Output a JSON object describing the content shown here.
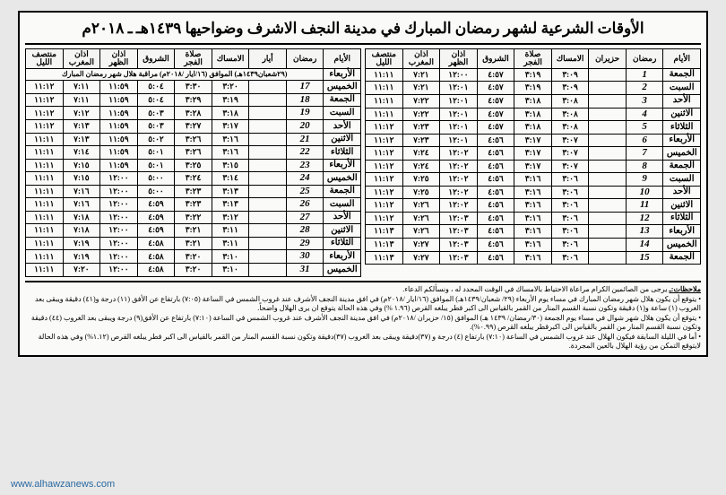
{
  "title": "الأوقات الشرعية لشهر رمضان المبارك في مدينة النجف الاشرف وضواحيها ١٤٣٩هـ ـ ٢٠١٨م",
  "columns": [
    "الأيام",
    "رمضان",
    "أيار",
    "الامساك",
    "صلاة الفجر",
    "الشروق",
    "اذان الظهر",
    "اذان المغرب",
    "منتصف الليل"
  ],
  "columns2": [
    "الأيام",
    "رمضان",
    "حزيران",
    "الامساك",
    "صلاة الفجر",
    "الشروق",
    "اذان الظهر",
    "اذان المغرب",
    "منتصف الليل"
  ],
  "span_row": "(٢٩شعبان١٤٣٩هـ) الموافق (١٦/ايار /٢٠١٨م) مراقبة هلال شهر رمضان المبارك",
  "right_rows": [
    [
      "الخميس",
      "17",
      "",
      "٣:٢٠",
      "٣:٣٠",
      "٥:٠٤",
      "١١:٥٩",
      "٧:١١",
      "١١:١٢"
    ],
    [
      "الجمعة",
      "18",
      "",
      "٣:١٩",
      "٣:٢٩",
      "٥:٠٤",
      "١١:٥٩",
      "٧:١١",
      "١١:١٢"
    ],
    [
      "السبت",
      "19",
      "",
      "٣:١٨",
      "٣:٢٨",
      "٥:٠٣",
      "١١:٥٩",
      "٧:١٢",
      "١١:١٢"
    ],
    [
      "الأحد",
      "20",
      "",
      "٣:١٧",
      "٣:٢٧",
      "٥:٠٣",
      "١١:٥٩",
      "٧:١٣",
      "١١:١٢"
    ],
    [
      "الاثنين",
      "21",
      "",
      "٣:١٦",
      "٣:٢٦",
      "٥:٠٢",
      "١١:٥٩",
      "٧:١٣",
      "١١:١١"
    ],
    [
      "الثلاثاء",
      "22",
      "",
      "٣:١٦",
      "٣:٢٦",
      "٥:٠١",
      "١١:٥٩",
      "٧:١٤",
      "١١:١١"
    ],
    [
      "الأربعاء",
      "23",
      "",
      "٣:١٥",
      "٣:٢٥",
      "٥:٠١",
      "١١:٥٩",
      "٧:١٥",
      "١١:١١"
    ],
    [
      "الخميس",
      "24",
      "",
      "٣:١٤",
      "٣:٢٤",
      "٥:٠٠",
      "١٢:٠٠",
      "٧:١٥",
      "١١:١١"
    ],
    [
      "الجمعة",
      "25",
      "",
      "٣:١٣",
      "٣:٢٣",
      "٥:٠٠",
      "١٢:٠٠",
      "٧:١٦",
      "١١:١١"
    ],
    [
      "السبت",
      "26",
      "",
      "٣:١٣",
      "٣:٢٣",
      "٤:٥٩",
      "١٢:٠٠",
      "٧:١٦",
      "١١:١١"
    ],
    [
      "الأحد",
      "27",
      "",
      "٣:١٢",
      "٣:٢٢",
      "٤:٥٩",
      "١٢:٠٠",
      "٧:١٨",
      "١١:١١"
    ],
    [
      "الاثنين",
      "28",
      "",
      "٣:١١",
      "٣:٢١",
      "٤:٥٩",
      "١٢:٠٠",
      "٧:١٨",
      "١١:١١"
    ],
    [
      "الثلاثاء",
      "29",
      "",
      "٣:١١",
      "٣:٢١",
      "٤:٥٨",
      "١٢:٠٠",
      "٧:١٩",
      "١١:١١"
    ],
    [
      "الأربعاء",
      "30",
      "",
      "٣:١٠",
      "٣:٢٠",
      "٤:٥٨",
      "١٢:٠٠",
      "٧:١٩",
      "١١:١١"
    ],
    [
      "الخميس",
      "31",
      "",
      "٣:١٠",
      "٣:٢٠",
      "٤:٥٨",
      "١٢:٠٠",
      "٧:٢٠",
      "١١:١١"
    ]
  ],
  "left_rows": [
    [
      "الجمعة",
      "1",
      "",
      "٣:٠٩",
      "٣:١٩",
      "٤:٥٧",
      "١٢:٠٠",
      "٧:٢١",
      "١١:١١"
    ],
    [
      "السبت",
      "2",
      "",
      "٣:٠٩",
      "٣:١٩",
      "٤:٥٧",
      "١٢:٠١",
      "٧:٢١",
      "١١:١١"
    ],
    [
      "الأحد",
      "3",
      "",
      "٣:٠٨",
      "٣:١٨",
      "٤:٥٧",
      "١٢:٠١",
      "٧:٢٢",
      "١١:١١"
    ],
    [
      "الاثنين",
      "4",
      "",
      "٣:٠٨",
      "٣:١٨",
      "٤:٥٧",
      "١٢:٠١",
      "٧:٢٢",
      "١١:١١"
    ],
    [
      "الثلاثاء",
      "5",
      "",
      "٣:٠٨",
      "٣:١٨",
      "٤:٥٧",
      "١٢:٠١",
      "٧:٢٣",
      "١١:١٢"
    ],
    [
      "الأربعاء",
      "6",
      "",
      "٣:٠٧",
      "٣:١٧",
      "٤:٥٦",
      "١٢:٠١",
      "٧:٢٣",
      "١١:١٢"
    ],
    [
      "الخميس",
      "7",
      "",
      "٣:٠٧",
      "٣:١٧",
      "٤:٥٦",
      "١٢:٠٢",
      "٧:٢٤",
      "١١:١٢"
    ],
    [
      "الجمعة",
      "8",
      "",
      "٣:٠٧",
      "٣:١٧",
      "٤:٥٦",
      "١٢:٠٢",
      "٧:٢٤",
      "١١:١٢"
    ],
    [
      "السبت",
      "9",
      "",
      "٣:٠٦",
      "٣:١٦",
      "٤:٥٦",
      "١٢:٠٢",
      "٧:٢٥",
      "١١:١٢"
    ],
    [
      "الأحد",
      "10",
      "",
      "٣:٠٦",
      "٣:١٦",
      "٤:٥٦",
      "١٢:٠٢",
      "٧:٢٥",
      "١١:١٢"
    ],
    [
      "الاثنين",
      "11",
      "",
      "٣:٠٦",
      "٣:١٦",
      "٤:٥٦",
      "١٢:٠٢",
      "٧:٢٦",
      "١١:١٢"
    ],
    [
      "الثلاثاء",
      "12",
      "",
      "٣:٠٦",
      "٣:١٦",
      "٤:٥٦",
      "١٢:٠٣",
      "٧:٢٦",
      "١١:١٢"
    ],
    [
      "الأربعاء",
      "13",
      "",
      "٣:٠٦",
      "٣:١٦",
      "٤:٥٦",
      "١٢:٠٣",
      "٧:٢٦",
      "١١:١٣"
    ],
    [
      "الخميس",
      "14",
      "",
      "٣:٠٦",
      "٣:١٦",
      "٤:٥٦",
      "١٢:٠٣",
      "٧:٢٧",
      "١١:١٣"
    ],
    [
      "الجمعة",
      "15",
      "",
      "٣:٠٦",
      "٣:١٦",
      "٤:٥٦",
      "١٢:٠٣",
      "٧:٢٧",
      "١١:١٣"
    ]
  ],
  "notes_label": "ملاحظات:ـ",
  "notes": [
    "يرجى من الصائمين الكرام مراعاة الاحتياط بالامساك في الوقت المحدد له ، ونسألكم الدعاء.",
    "• يتوقع أن يكون هلال شهر رمضان المبارك في مساء يوم الأربعاء (٢٩/ شعبان/١٤٣٩هـ) الموافق (١٦/ايار /٢٠١٨م) في افق مدينة النجف الأشرف عند غروب الشمس في الساعة (٧:٠٥) بارتفاع عن الأفق (١١) درجة و(٤١) دقيقة ويبقى بعد الغروب (١) ساعة و(١) دقيقة وتكون نسبة القسم المنار من القمر بالقياس الى اكبر قطر يبلغه القرص (١.٩٦ %) وفي هذه الحالة يتوقع ان يرى الهلال واضحاً.",
    "• يتوقع أن يكون هلال شهر شوال في مساء يوم الجمعة (٣٠/رمضان/ ١٤٣٩ هـ) الموافق (١٥/ حزيران /٢٠١٨م) في افق مدينة النجف الأشرف عند غروب الشمس في الساعة (٧:١٠) بارتفاع عن الأفق(٩) درجة ويبقى بعد الغروب (٤٤) دقيقة وتكون نسبة القسم المنار من القمر بالقياس الى اكبرقطر يبلغه القرص (٠.٩٩%).",
    "• أما في الليلة السابقة فيكون الهلال عند غروب الشمس في الساعة (٧:١٠) بارتفاع (٤) درجة و (٣٧)دقيقة ويبقى بعد الغروب (٣٧)دقيقة وتكون نسبة القسم المنار من القمر بالقياس الى اكبر قطر يبلغه القرص (١.١٢%) وفي هذه الحالة لايتوقع التمكن من رؤية الهلال بالعين المجردة."
  ],
  "watermark": "www.alhawzanews.com",
  "right_first_row": [
    "الأربعاء"
  ]
}
